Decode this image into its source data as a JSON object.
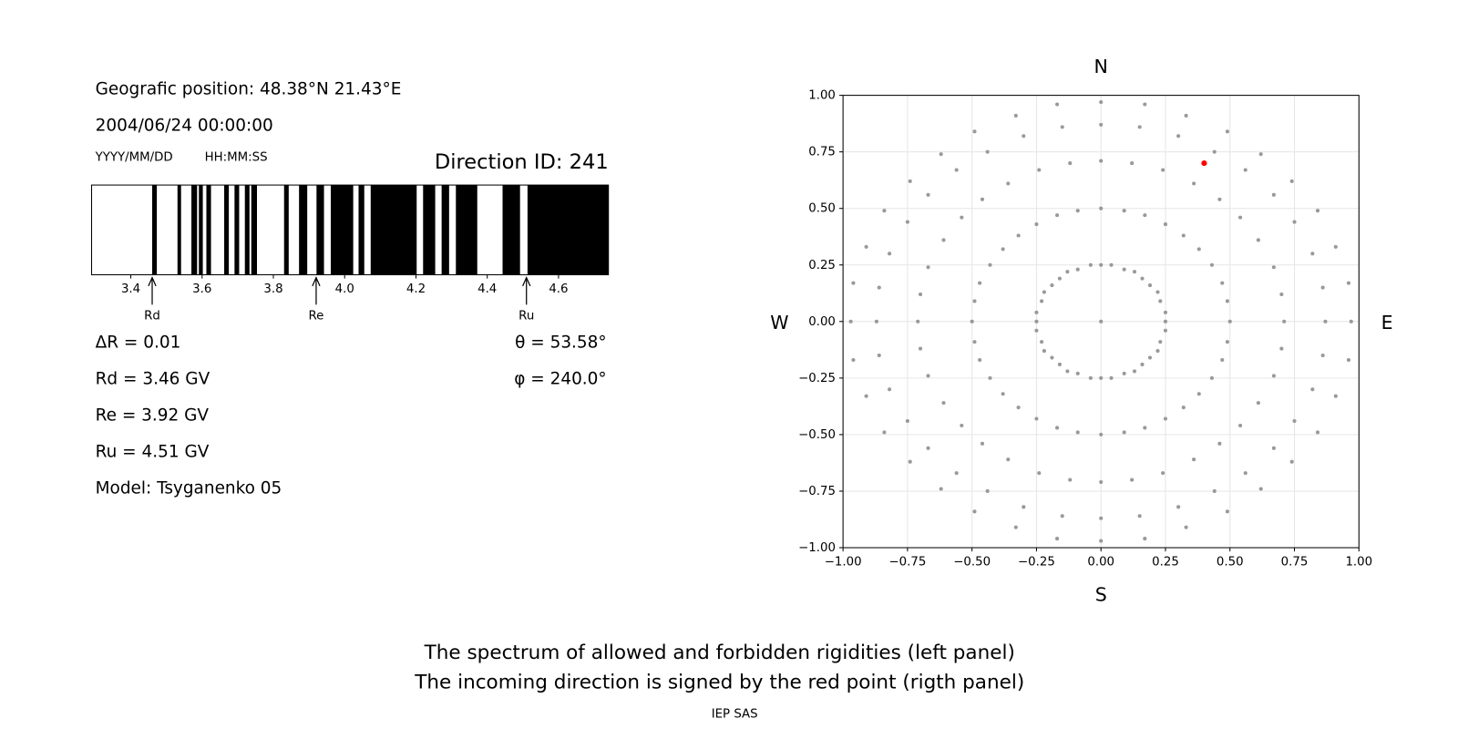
{
  "info": {
    "position": "Geografic position: 48.38°N 21.43°E",
    "datetime": "2004/06/24 00:00:00",
    "date_format": "YYYY/MM/DD",
    "time_format": "HH:MM:SS",
    "direction_id": "Direction ID: 241",
    "left_lines": [
      "ΔR = 0.01",
      "Rd = 3.46 GV",
      "Re = 3.92 GV",
      "Ru = 4.51 GV",
      "Model: Tsyganenko 05"
    ],
    "right_lines": [
      "θ = 53.58°",
      "φ = 240.0°"
    ]
  },
  "chart_data": [
    {
      "type": "spectrum",
      "xlim": [
        3.29,
        4.74
      ],
      "xticks": [
        3.4,
        3.6,
        3.8,
        {
          "value": 4,
          "label": "4.0"
        },
        4.2,
        4.4,
        4.6
      ],
      "color": "#000000",
      "bands": [
        [
          3.46,
          3.473
        ],
        [
          3.531,
          3.541
        ],
        [
          3.57,
          3.586
        ],
        [
          3.591,
          3.602
        ],
        [
          3.612,
          3.625
        ],
        [
          3.662,
          3.675
        ],
        [
          3.691,
          3.704
        ],
        [
          3.72,
          3.733
        ],
        [
          3.738,
          3.754
        ],
        [
          3.83,
          3.843
        ],
        [
          3.872,
          3.895
        ],
        [
          3.921,
          3.942
        ],
        [
          3.961,
          4.024
        ],
        [
          4.039,
          4.055
        ],
        [
          4.073,
          4.202
        ],
        [
          4.22,
          4.254
        ],
        [
          4.272,
          4.293
        ],
        [
          4.312,
          4.372
        ],
        [
          4.443,
          4.492
        ],
        [
          4.513,
          4.74
        ]
      ],
      "markers": [
        {
          "label": "Rd",
          "value": 3.46
        },
        {
          "label": "Re",
          "value": 3.92
        },
        {
          "label": "Ru",
          "value": 4.51
        }
      ]
    },
    {
      "type": "scatter",
      "xlim": [
        -1,
        1
      ],
      "ylim": [
        -1,
        1
      ],
      "xticks": [
        {
          "value": -1,
          "label": "−1.00"
        },
        {
          "value": -0.75,
          "label": "−0.75"
        },
        {
          "value": -0.5,
          "label": "−0.50"
        },
        {
          "value": -0.25,
          "label": "−0.25"
        },
        {
          "value": 0,
          "label": "0.00"
        },
        {
          "value": 0.25,
          "label": "0.25"
        },
        {
          "value": 0.5,
          "label": "0.50"
        },
        {
          "value": 0.75,
          "label": "0.75"
        },
        {
          "value": 1,
          "label": "1.00"
        }
      ],
      "yticks": [
        {
          "value": -1,
          "label": "−1.00"
        },
        {
          "value": -0.75,
          "label": "−0.75"
        },
        {
          "value": -0.5,
          "label": "−0.50"
        },
        {
          "value": -0.25,
          "label": "−0.25"
        },
        {
          "value": 0,
          "label": "0.00"
        },
        {
          "value": 0.25,
          "label": "0.25"
        },
        {
          "value": 0.5,
          "label": "0.50"
        },
        {
          "value": 0.75,
          "label": "0.75"
        },
        {
          "value": 1,
          "label": "1.00"
        }
      ],
      "grid": true,
      "directions": {
        "north": "N",
        "south": "S",
        "west": "W",
        "east": "E"
      },
      "series": [
        {
          "color": "#999999",
          "x": [
            0,
            0,
            0.04,
            0.09,
            0.13,
            0.16,
            0.19,
            0.22,
            0.23,
            0.25,
            0.25,
            0.25,
            0.23,
            0.22,
            0.19,
            0.16,
            0.13,
            0.09,
            0.04,
            0,
            -0.04,
            -0.09,
            -0.13,
            -0.16,
            -0.19,
            -0.22,
            -0.23,
            -0.25,
            -0.25,
            -0.25,
            -0.23,
            -0.22,
            -0.19,
            -0.16,
            -0.13,
            -0.09,
            -0.04,
            0,
            0.09,
            0.17,
            0.25,
            0.32,
            0.38,
            0.43,
            0.47,
            0.49,
            0.5,
            0.49,
            0.47,
            0.43,
            0.38,
            0.32,
            0.25,
            0.17,
            0.09,
            0,
            -0.09,
            -0.17,
            -0.25,
            -0.32,
            -0.38,
            -0.43,
            -0.47,
            -0.49,
            -0.5,
            -0.49,
            -0.47,
            -0.43,
            -0.38,
            -0.32,
            -0.25,
            -0.17,
            -0.09,
            0,
            0.12,
            0.24,
            0.36,
            0.46,
            0.54,
            0.61,
            0.67,
            0.7,
            0.71,
            0.7,
            0.67,
            0.61,
            0.54,
            0.46,
            0.36,
            0.24,
            0.12,
            0,
            -0.12,
            -0.24,
            -0.36,
            -0.46,
            -0.54,
            -0.61,
            -0.67,
            -0.7,
            -0.71,
            -0.7,
            -0.67,
            -0.61,
            -0.54,
            -0.46,
            -0.36,
            -0.24,
            -0.12,
            0,
            0.15,
            0.3,
            0.44,
            0.56,
            0.67,
            0.75,
            0.82,
            0.86,
            0.87,
            0.86,
            0.82,
            0.75,
            0.67,
            0.56,
            0.44,
            0.3,
            0.15,
            0,
            -0.15,
            -0.3,
            -0.44,
            -0.56,
            -0.67,
            -0.75,
            -0.82,
            -0.86,
            -0.87,
            -0.86,
            -0.82,
            -0.75,
            -0.67,
            -0.56,
            -0.44,
            -0.3,
            -0.15,
            0,
            0.17,
            0.33,
            0.49,
            0.62,
            0.74,
            0.84,
            0.91,
            0.96,
            0.97,
            0.96,
            0.91,
            0.84,
            0.74,
            0.62,
            0.49,
            0.33,
            0.17,
            0,
            -0.17,
            -0.33,
            -0.49,
            -0.62,
            -0.74,
            -0.84,
            -0.91,
            -0.96,
            -0.97,
            -0.96,
            -0.91,
            -0.84,
            -0.74,
            -0.62,
            -0.49,
            -0.33,
            -0.17
          ],
          "y": [
            0,
            0.25,
            0.25,
            0.23,
            0.22,
            0.19,
            0.16,
            0.13,
            0.09,
            0.04,
            0,
            -0.04,
            -0.09,
            -0.13,
            -0.16,
            -0.19,
            -0.22,
            -0.23,
            -0.25,
            -0.25,
            -0.25,
            -0.23,
            -0.22,
            -0.19,
            -0.16,
            -0.13,
            -0.09,
            -0.04,
            0,
            0.04,
            0.09,
            0.13,
            0.16,
            0.19,
            0.22,
            0.23,
            0.25,
            0.5,
            0.49,
            0.47,
            0.43,
            0.38,
            0.32,
            0.25,
            0.17,
            0.09,
            0,
            -0.09,
            -0.17,
            -0.25,
            -0.32,
            -0.38,
            -0.43,
            -0.47,
            -0.49,
            -0.5,
            -0.49,
            -0.47,
            -0.43,
            -0.38,
            -0.32,
            -0.25,
            -0.17,
            -0.09,
            0,
            0.09,
            0.17,
            0.25,
            0.32,
            0.38,
            0.43,
            0.47,
            0.49,
            0.71,
            0.7,
            0.67,
            0.61,
            0.54,
            0.46,
            0.36,
            0.24,
            0.12,
            0,
            -0.12,
            -0.24,
            -0.36,
            -0.46,
            -0.54,
            -0.61,
            -0.67,
            -0.7,
            -0.71,
            -0.7,
            -0.67,
            -0.61,
            -0.54,
            -0.46,
            -0.36,
            -0.24,
            -0.12,
            0,
            0.12,
            0.24,
            0.36,
            0.46,
            0.54,
            0.61,
            0.67,
            0.7,
            0.87,
            0.86,
            0.82,
            0.75,
            0.67,
            0.56,
            0.44,
            0.3,
            0.15,
            0,
            -0.15,
            -0.3,
            -0.44,
            -0.56,
            -0.67,
            -0.75,
            -0.82,
            -0.86,
            -0.87,
            -0.86,
            -0.82,
            -0.75,
            -0.67,
            -0.56,
            -0.44,
            -0.3,
            -0.15,
            0,
            0.15,
            0.3,
            0.44,
            0.56,
            0.67,
            0.75,
            0.82,
            0.86,
            0.97,
            0.96,
            0.91,
            0.84,
            0.74,
            0.62,
            0.49,
            0.33,
            0.17,
            0,
            -0.17,
            -0.33,
            -0.49,
            -0.62,
            -0.74,
            -0.84,
            -0.91,
            -0.96,
            -0.97,
            -0.96,
            -0.91,
            -0.84,
            -0.74,
            -0.62,
            -0.49,
            -0.33,
            -0.17,
            0,
            0.17,
            0.33,
            0.49,
            0.62,
            0.74,
            0.84,
            0.91,
            0.96
          ]
        },
        {
          "color": "#ff0000",
          "x": [
            0.4
          ],
          "y": [
            0.7
          ]
        }
      ]
    }
  ],
  "footer": {
    "lines": [
      "The spectrum of allowed and forbidden rigidities (left panel)",
      "The incoming direction is signed by the red point (rigth panel)"
    ],
    "credit": "IEP SAS"
  }
}
